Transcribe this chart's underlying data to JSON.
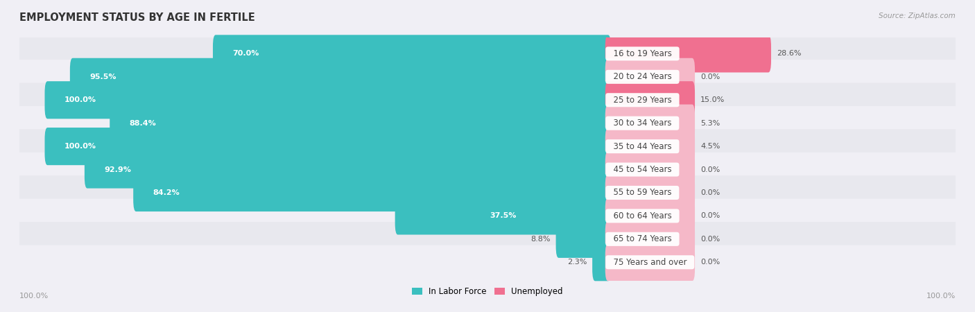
{
  "title": "EMPLOYMENT STATUS BY AGE IN FERTILE",
  "source": "Source: ZipAtlas.com",
  "categories": [
    "16 to 19 Years",
    "20 to 24 Years",
    "25 to 29 Years",
    "30 to 34 Years",
    "35 to 44 Years",
    "45 to 54 Years",
    "55 to 59 Years",
    "60 to 64 Years",
    "65 to 74 Years",
    "75 Years and over"
  ],
  "labor_force": [
    70.0,
    95.5,
    100.0,
    88.4,
    100.0,
    92.9,
    84.2,
    37.5,
    8.8,
    2.3
  ],
  "unemployed": [
    28.6,
    0.0,
    15.0,
    5.3,
    4.5,
    0.0,
    0.0,
    0.0,
    0.0,
    0.0
  ],
  "labor_color": "#3bbfbf",
  "unemployed_color_strong": "#f07090",
  "unemployed_color_weak": "#f5b8c8",
  "bar_bg_color": "#f0eff5",
  "row_bg_odd": "#e8e8ee",
  "row_bg_even": "#f0eff5",
  "label_color": "#555555",
  "white_label_color": "#ffffff",
  "title_color": "#333333",
  "source_color": "#999999",
  "axis_label_color": "#999999",
  "cat_label_color": "#444444",
  "legend_labor": "In Labor Force",
  "legend_unemployed": "Unemployed",
  "x_left_label": "100.0%",
  "x_right_label": "100.0%",
  "max_val": 100.0,
  "min_pink_bar": 15.0,
  "figsize": [
    14.06,
    4.5
  ],
  "dpi": 100
}
